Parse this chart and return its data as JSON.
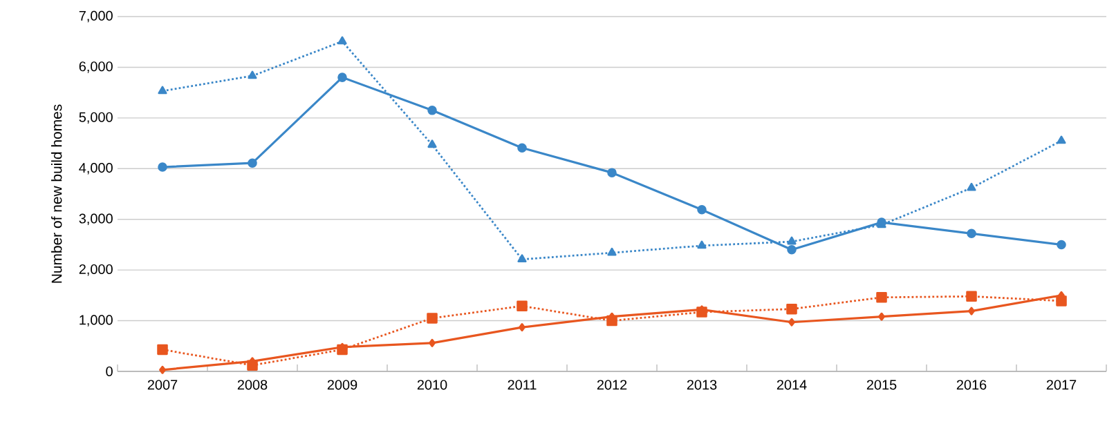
{
  "chart_data": {
    "type": "line",
    "ylabel": "Number of new build homes",
    "categories": [
      "2007",
      "2008",
      "2009",
      "2010",
      "2011",
      "2012",
      "2013",
      "2014",
      "2015",
      "2016",
      "2017"
    ],
    "ylim": [
      0,
      7000
    ],
    "yticks": [
      {
        "value": 0,
        "label": "0"
      },
      {
        "value": 1000,
        "label": "1,000"
      },
      {
        "value": 2000,
        "label": "2,000"
      },
      {
        "value": 3000,
        "label": "3,000"
      },
      {
        "value": 4000,
        "label": "4,000"
      },
      {
        "value": 5000,
        "label": "5,000"
      },
      {
        "value": 6000,
        "label": "6,000"
      },
      {
        "value": 7000,
        "label": "7,000"
      }
    ],
    "grid": "y",
    "series": [
      {
        "color": "#3a87c8",
        "marker": "circle",
        "line_style": "solid",
        "values": [
          4030,
          4110,
          5800,
          5150,
          4410,
          3920,
          3190,
          2400,
          2940,
          2720,
          2500
        ]
      },
      {
        "color": "#3a87c8",
        "marker": "triangle",
        "line_style": "dotted",
        "values": [
          5530,
          5830,
          6510,
          4470,
          2210,
          2340,
          2480,
          2560,
          2890,
          3620,
          4550
        ]
      },
      {
        "color": "#e8561f",
        "marker": "diamond",
        "line_style": "solid",
        "values": [
          30,
          200,
          480,
          560,
          870,
          1080,
          1220,
          970,
          1080,
          1190,
          1500
        ]
      },
      {
        "color": "#e8561f",
        "marker": "square",
        "line_style": "dotted",
        "values": [
          430,
          120,
          430,
          1050,
          1290,
          1000,
          1170,
          1230,
          1460,
          1480,
          1390
        ]
      }
    ]
  }
}
